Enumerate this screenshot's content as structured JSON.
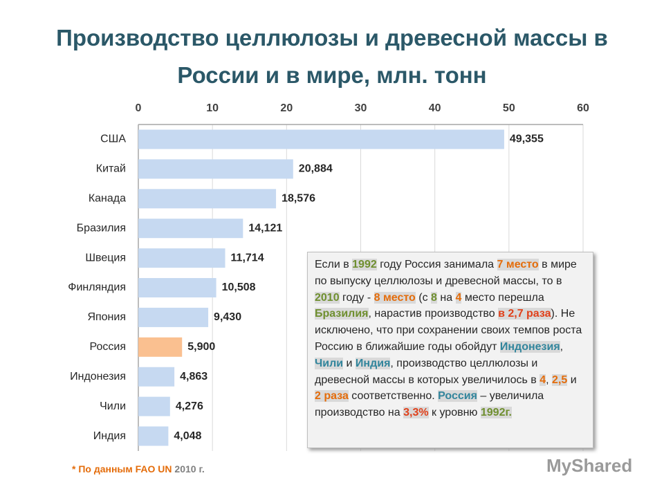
{
  "chart_data": {
    "type": "bar",
    "orientation": "horizontal",
    "title": "Производство целлюлозы и древесной массы в России и в мире, млн. тонн",
    "categories": [
      "США",
      "Китай",
      "Канада",
      "Бразилия",
      "Швеция",
      "Финляндия",
      "Япония",
      "Россия",
      "Индонезия",
      "Чили",
      "Индия"
    ],
    "values": [
      49.355,
      20.884,
      18.576,
      14.121,
      11.714,
      10.508,
      9.43,
      5.9,
      4.863,
      4.276,
      4.048
    ],
    "value_labels": [
      "49,355",
      "20,884",
      "18,576",
      "14,121",
      "11,714",
      "10,508",
      "9,430",
      "5,900",
      "4,863",
      "4,276",
      "4,048"
    ],
    "colors": [
      "#c6d9f1",
      "#c6d9f1",
      "#c6d9f1",
      "#c6d9f1",
      "#c6d9f1",
      "#c6d9f1",
      "#c6d9f1",
      "#fac090",
      "#c6d9f1",
      "#c6d9f1",
      "#c6d9f1"
    ],
    "xlim": [
      0,
      60
    ],
    "xticks": [
      0,
      10,
      20,
      30,
      40,
      50,
      60
    ],
    "grid": true
  },
  "annotation": [
    {
      "text": "Если в "
    },
    {
      "text": "1992",
      "color": "#6f8f2f"
    },
    {
      "text": " году Россия занимала "
    },
    {
      "text": "7 место",
      "color": "#e46c0a"
    },
    {
      "text": " в мире по выпуску целлюлозы и древесной массы, то в "
    },
    {
      "text": "2010",
      "color": "#6f8f2f"
    },
    {
      "text": " году  - "
    },
    {
      "text": "8 место",
      "color": "#e46c0a"
    },
    {
      "text": " (с "
    },
    {
      "text": "8",
      "color": "#6f8f2f"
    },
    {
      "text": " на "
    },
    {
      "text": "4",
      "color": "#e46c0a"
    },
    {
      "text": " место перешла "
    },
    {
      "text": "Бразилия",
      "color": "#6f8f2f"
    },
    {
      "text": ", нарастив производство "
    },
    {
      "text": "в 2,7 раза",
      "color": "#e0401a"
    },
    {
      "text": "). Не исключено, что при сохранении своих темпов роста Россию в ближайшие годы обойдут "
    },
    {
      "text": "Индонезия",
      "color": "#31859c"
    },
    {
      "text": ", "
    },
    {
      "text": "Чили",
      "color": "#31859c"
    },
    {
      "text": " и "
    },
    {
      "text": "Индия",
      "color": "#31859c"
    },
    {
      "text": ", производство целлюлозы и древесной массы в которых увеличилось в "
    },
    {
      "text": "4",
      "color": "#e46c0a"
    },
    {
      "text": ", "
    },
    {
      "text": "2,5",
      "color": "#e46c0a"
    },
    {
      "text": " и "
    },
    {
      "text": "2 раза",
      "color": "#e46c0a"
    },
    {
      "text": " соответственно. "
    },
    {
      "text": "Россия",
      "color": "#31859c"
    },
    {
      "text": " – увеличила производство на "
    },
    {
      "text": "3,3%",
      "color": "#e0401a"
    },
    {
      "text": " к уровню "
    },
    {
      "text": "1992г.",
      "color": "#6f8f2f"
    }
  ],
  "footnote": [
    {
      "text": "* По данным FAO UN",
      "color": "#e46c0a"
    },
    {
      "text": "2010 г.",
      "color": "#7f7f7f"
    }
  ],
  "watermark": "MyShared"
}
